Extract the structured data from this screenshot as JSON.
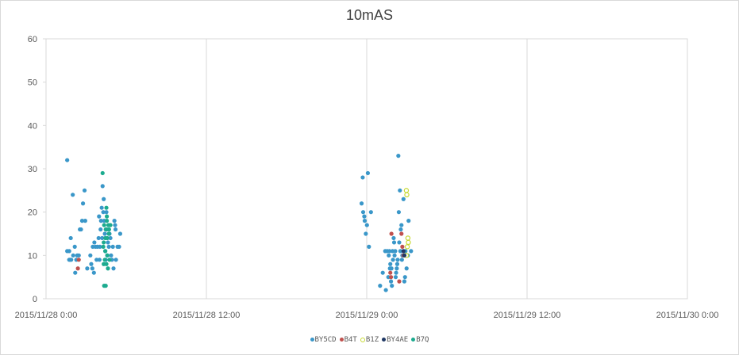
{
  "chart_data": {
    "type": "scatter",
    "title": "10mAS",
    "xlabel": "",
    "ylabel": "",
    "ylim": [
      0,
      60
    ],
    "yticks": [
      0,
      10,
      20,
      30,
      40,
      50,
      60
    ],
    "xlim": [
      "2015/11/28 0:00",
      "2015/11/30 0:00"
    ],
    "xticks": [
      "2015/11/28 0:00",
      "2015/11/28 12:00",
      "2015/11/29 0:00",
      "2015/11/29 12:00",
      "2015/11/30 0:00"
    ],
    "grid": "vertical",
    "legend_position": "bottom",
    "series": [
      {
        "name": "BY5CD",
        "color": "#3a97c9",
        "hollow": false,
        "points": [
          [
            "2015/11/28 1:35",
            32
          ],
          [
            "2015/11/28 1:35",
            11
          ],
          [
            "2015/11/28 1:44",
            11
          ],
          [
            "2015/11/28 1:44",
            9
          ],
          [
            "2015/11/28 1:48",
            9
          ],
          [
            "2015/11/28 1:51",
            14
          ],
          [
            "2015/11/28 1:53",
            9
          ],
          [
            "2015/11/28 2:00",
            24
          ],
          [
            "2015/11/28 2:02",
            10
          ],
          [
            "2015/11/28 2:09",
            12
          ],
          [
            "2015/11/28 2:11",
            6
          ],
          [
            "2015/11/28 2:16",
            9
          ],
          [
            "2015/11/28 2:20",
            10
          ],
          [
            "2015/11/28 2:27",
            10
          ],
          [
            "2015/11/28 2:32",
            16
          ],
          [
            "2015/11/28 2:37",
            16
          ],
          [
            "2015/11/28 2:42",
            18
          ],
          [
            "2015/11/28 2:46",
            22
          ],
          [
            "2015/11/28 2:53",
            25
          ],
          [
            "2015/11/28 2:56",
            18
          ],
          [
            "2015/11/28 3:05",
            7
          ],
          [
            "2015/11/28 3:19",
            10
          ],
          [
            "2015/11/28 3:23",
            8
          ],
          [
            "2015/11/28 3:28",
            7
          ],
          [
            "2015/11/28 3:30",
            12
          ],
          [
            "2015/11/28 3:35",
            6
          ],
          [
            "2015/11/28 3:37",
            13
          ],
          [
            "2015/11/28 3:42",
            12
          ],
          [
            "2015/11/28 3:47",
            9
          ],
          [
            "2015/11/28 3:51",
            12
          ],
          [
            "2015/11/28 3:56",
            14
          ],
          [
            "2015/11/28 3:58",
            19
          ],
          [
            "2015/11/28 4:00",
            9
          ],
          [
            "2015/11/28 4:02",
            12
          ],
          [
            "2015/11/28 4:05",
            16
          ],
          [
            "2015/11/28 4:07",
            18
          ],
          [
            "2015/11/28 4:10",
            21
          ],
          [
            "2015/11/28 4:12",
            14
          ],
          [
            "2015/11/28 4:14",
            26
          ],
          [
            "2015/11/28 4:17",
            20
          ],
          [
            "2015/11/28 4:19",
            23
          ],
          [
            "2015/11/28 4:21",
            18
          ],
          [
            "2015/11/28 4:24",
            15
          ],
          [
            "2015/11/28 4:26",
            11
          ],
          [
            "2015/11/28 4:28",
            9
          ],
          [
            "2015/11/28 4:31",
            20
          ],
          [
            "2015/11/28 4:33",
            16
          ],
          [
            "2015/11/28 4:35",
            10
          ],
          [
            "2015/11/28 4:38",
            13
          ],
          [
            "2015/11/28 4:42",
            12
          ],
          [
            "2015/11/28 4:45",
            15
          ],
          [
            "2015/11/28 4:49",
            14
          ],
          [
            "2015/11/28 4:52",
            10
          ],
          [
            "2015/11/28 4:56",
            9
          ],
          [
            "2015/11/28 5:00",
            12
          ],
          [
            "2015/11/28 5:03",
            7
          ],
          [
            "2015/11/28 5:07",
            18
          ],
          [
            "2015/11/28 5:10",
            17
          ],
          [
            "2015/11/28 5:12",
            16
          ],
          [
            "2015/11/28 5:14",
            9
          ],
          [
            "2015/11/28 5:21",
            12
          ],
          [
            "2015/11/28 5:28",
            12
          ],
          [
            "2015/11/28 5:33",
            15
          ],
          [
            "2015/11/28 23:37",
            22
          ],
          [
            "2015/11/28 23:42",
            28
          ],
          [
            "2015/11/28 23:44",
            20
          ],
          [
            "2015/11/28 23:49",
            19
          ],
          [
            "2015/11/28 23:51",
            18
          ],
          [
            "2015/11/28 23:56",
            15
          ],
          [
            "2015/11/29 0:01",
            17
          ],
          [
            "2015/11/29 0:05",
            29
          ],
          [
            "2015/11/29 0:10",
            12
          ],
          [
            "2015/11/29 0:19",
            20
          ],
          [
            "2015/11/29 1:00",
            3
          ],
          [
            "2015/11/29 1:12",
            6
          ],
          [
            "2015/11/29 1:23",
            11
          ],
          [
            "2015/11/29 1:26",
            2
          ],
          [
            "2015/11/29 1:32",
            11
          ],
          [
            "2015/11/29 1:37",
            5
          ],
          [
            "2015/11/29 1:39",
            10
          ],
          [
            "2015/11/29 1:42",
            11
          ],
          [
            "2015/11/29 1:44",
            7
          ],
          [
            "2015/11/29 1:46",
            8
          ],
          [
            "2015/11/29 1:49",
            4
          ],
          [
            "2015/11/29 1:51",
            7
          ],
          [
            "2015/11/29 1:53",
            3
          ],
          [
            "2015/11/29 1:56",
            11
          ],
          [
            "2015/11/29 1:58",
            9
          ],
          [
            "2015/11/29 2:01",
            14
          ],
          [
            "2015/11/29 2:03",
            13
          ],
          [
            "2015/11/29 2:05",
            10
          ],
          [
            "2015/11/29 2:08",
            11
          ],
          [
            "2015/11/29 2:10",
            5
          ],
          [
            "2015/11/29 2:12",
            6
          ],
          [
            "2015/11/29 2:15",
            7
          ],
          [
            "2015/11/29 2:17",
            8
          ],
          [
            "2015/11/29 2:19",
            9
          ],
          [
            "2015/11/29 2:22",
            33
          ],
          [
            "2015/11/29 2:24",
            20
          ],
          [
            "2015/11/29 2:26",
            13
          ],
          [
            "2015/11/29 2:29",
            25
          ],
          [
            "2015/11/29 2:31",
            11
          ],
          [
            "2015/11/29 2:33",
            16
          ],
          [
            "2015/11/29 2:36",
            17
          ],
          [
            "2015/11/29 2:38",
            9
          ],
          [
            "2015/11/29 2:40",
            10
          ],
          [
            "2015/11/29 2:45",
            23
          ],
          [
            "2015/11/29 2:49",
            4
          ],
          [
            "2015/11/29 2:52",
            5
          ],
          [
            "2015/11/29 2:54",
            11
          ],
          [
            "2015/11/29 2:59",
            7
          ],
          [
            "2015/11/29 3:05",
            10
          ],
          [
            "2015/11/29 3:08",
            18
          ],
          [
            "2015/11/29 3:19",
            11
          ]
        ]
      },
      {
        "name": "B4T",
        "color": "#c0504d",
        "hollow": false,
        "points": [
          [
            "2015/11/28 2:23",
            7
          ],
          [
            "2015/11/28 2:27",
            9
          ],
          [
            "2015/11/29 1:46",
            6
          ],
          [
            "2015/11/29 1:49",
            5
          ],
          [
            "2015/11/29 1:51",
            15
          ],
          [
            "2015/11/29 2:26",
            4
          ],
          [
            "2015/11/29 2:36",
            15
          ],
          [
            "2015/11/29 2:40",
            12
          ],
          [
            "2015/11/29 2:45",
            10
          ]
        ]
      },
      {
        "name": "B1Z",
        "color": "#c6d931",
        "hollow": true,
        "points": [
          [
            "2015/11/29 2:58",
            10
          ],
          [
            "2015/11/29 2:58",
            25
          ],
          [
            "2015/11/29 3:00",
            24
          ],
          [
            "2015/11/29 3:02",
            12
          ],
          [
            "2015/11/29 3:05",
            14
          ],
          [
            "2015/11/29 3:07",
            13
          ]
        ]
      },
      {
        "name": "BY4AE",
        "color": "#1f3864",
        "hollow": false,
        "points": [
          [
            "2015/11/29 2:45",
            11
          ],
          [
            "2015/11/29 2:49",
            10
          ]
        ]
      },
      {
        "name": "B7Q",
        "color": "#1cab8f",
        "hollow": false,
        "points": [
          [
            "2015/11/28 4:14",
            29
          ],
          [
            "2015/11/28 4:17",
            12
          ],
          [
            "2015/11/28 4:19",
            13
          ],
          [
            "2015/11/28 4:21",
            17
          ],
          [
            "2015/11/28 4:24",
            9
          ],
          [
            "2015/11/28 4:26",
            14
          ],
          [
            "2015/11/28 4:28",
            16
          ],
          [
            "2015/11/28 4:31",
            21
          ],
          [
            "2015/11/28 4:33",
            19
          ],
          [
            "2015/11/28 4:35",
            14
          ],
          [
            "2015/11/28 4:19",
            8
          ],
          [
            "2015/11/28 4:26",
            11
          ],
          [
            "2015/11/28 4:31",
            8
          ],
          [
            "2015/11/28 4:35",
            10
          ],
          [
            "2015/11/28 4:38",
            7
          ],
          [
            "2015/11/28 4:40",
            17
          ],
          [
            "2015/11/28 4:43",
            16
          ],
          [
            "2015/11/28 4:45",
            9
          ],
          [
            "2015/11/28 4:49",
            17
          ],
          [
            "2015/11/28 4:21",
            3
          ],
          [
            "2015/11/28 4:28",
            3
          ],
          [
            "2015/11/28 4:31",
            16
          ],
          [
            "2015/11/28 4:33",
            18
          ],
          [
            "2015/11/28 4:42",
            15
          ]
        ]
      }
    ]
  }
}
